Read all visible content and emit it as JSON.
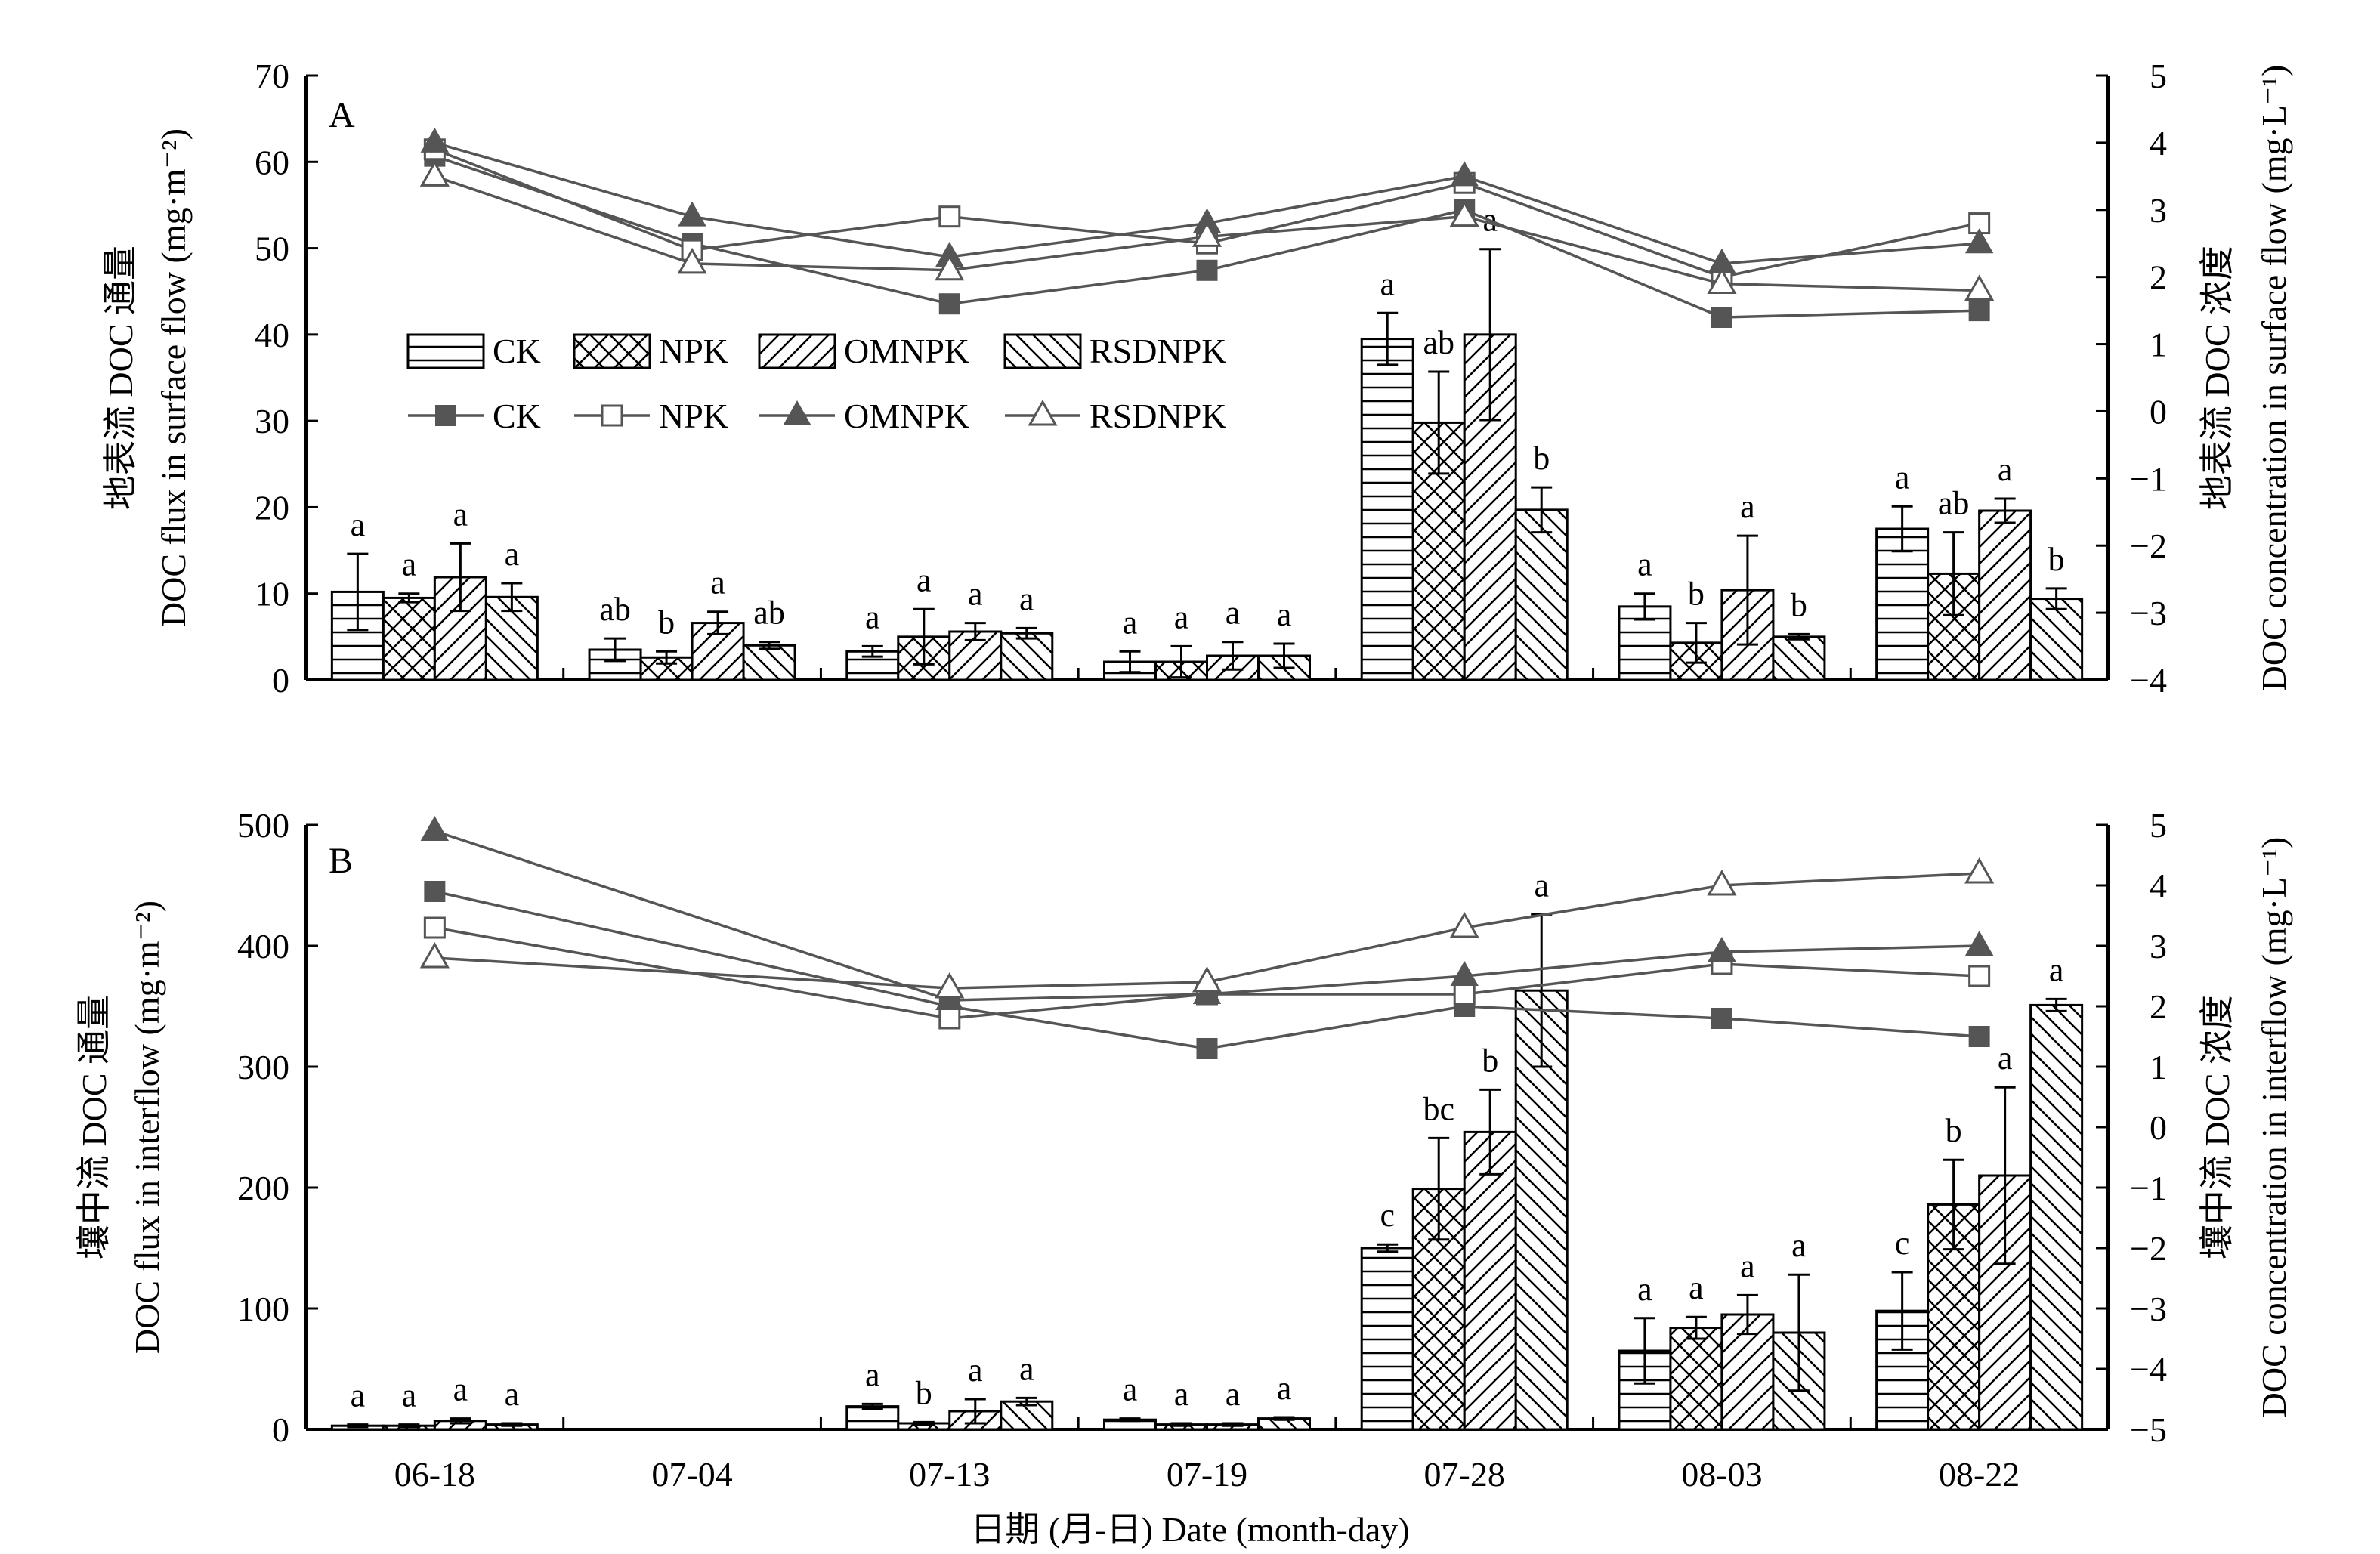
{
  "chart_data": [
    {
      "panel": "A",
      "type": "bar",
      "categories": [
        "06-18",
        "07-04",
        "07-13",
        "07-19",
        "07-28",
        "08-03",
        "08-22"
      ],
      "ylabel_left": [
        "地表流 DOC 通量",
        "DOC flux in surface flow (mg·m⁻²)"
      ],
      "ylabel_right": [
        "地表流 DOC 浓度",
        "DOC concentration in surface flow (mg·L⁻¹)"
      ],
      "ylim_left": [
        0,
        70
      ],
      "yticks_left": [
        0,
        10,
        20,
        30,
        40,
        50,
        60,
        70
      ],
      "ylim_right": [
        -4,
        5
      ],
      "yticks_right": [
        -4,
        -3,
        -2,
        -1,
        0,
        1,
        2,
        3,
        4,
        5
      ],
      "bar_series": [
        {
          "name": "CK",
          "pattern": "horizontal",
          "values": [
            10.2,
            3.5,
            3.3,
            2.1,
            39.5,
            8.5,
            17.5
          ],
          "errors": [
            4.4,
            1.3,
            0.6,
            1.2,
            3.0,
            1.5,
            2.6
          ],
          "labels": [
            "a",
            "ab",
            "a",
            "a",
            "a",
            "a",
            "a"
          ]
        },
        {
          "name": "NPK",
          "pattern": "cross",
          "values": [
            9.5,
            2.6,
            5.0,
            2.1,
            29.8,
            4.3,
            12.3
          ],
          "errors": [
            0.5,
            0.7,
            3.2,
            1.8,
            5.9,
            2.3,
            4.8
          ],
          "labels": [
            "a",
            "b",
            "a",
            "a",
            "ab",
            "b",
            "ab"
          ]
        },
        {
          "name": "OMNPK",
          "pattern": "forward",
          "values": [
            11.9,
            6.6,
            5.6,
            2.8,
            40.0,
            10.4,
            19.6
          ],
          "errors": [
            3.9,
            1.3,
            1.0,
            1.6,
            9.9,
            6.3,
            1.4
          ],
          "labels": [
            "a",
            "a",
            "a",
            "a",
            "a",
            "a",
            "a"
          ]
        },
        {
          "name": "RSDNPK",
          "pattern": "backward",
          "values": [
            9.6,
            4.0,
            5.4,
            2.8,
            19.7,
            5.0,
            9.4
          ],
          "errors": [
            1.6,
            0.4,
            0.6,
            1.4,
            2.6,
            0.3,
            1.2
          ],
          "labels": [
            "a",
            "ab",
            "a",
            "a",
            "b",
            "b",
            "b"
          ]
        }
      ],
      "line_series": [
        {
          "name": "CK",
          "marker": "filled-square",
          "values": [
            3.8,
            2.5,
            1.6,
            2.1,
            3.0,
            1.4,
            1.5
          ]
        },
        {
          "name": "NPK",
          "marker": "open-square",
          "values": [
            3.9,
            2.4,
            2.9,
            2.5,
            3.4,
            2.0,
            2.8
          ]
        },
        {
          "name": "OMNPK",
          "marker": "filled-triangle",
          "values": [
            4.0,
            2.9,
            2.3,
            2.8,
            3.5,
            2.2,
            2.5
          ]
        },
        {
          "name": "RSDNPK",
          "marker": "open-triangle",
          "values": [
            3.5,
            2.2,
            2.1,
            2.6,
            2.9,
            1.9,
            1.8
          ]
        }
      ]
    },
    {
      "panel": "B",
      "type": "bar",
      "categories": [
        "06-18",
        "07-04",
        "07-13",
        "07-19",
        "07-28",
        "08-03",
        "08-22"
      ],
      "ylabel_left": [
        "壤中流 DOC 通量",
        "DOC flux in interflow (mg·m⁻²)"
      ],
      "ylabel_right": [
        "壤中流 DOC 浓度",
        "DOC concentration in interflow (mg·L⁻¹)"
      ],
      "ylim_left": [
        0,
        500
      ],
      "yticks_left": [
        0,
        100,
        200,
        300,
        400,
        500
      ],
      "ylim_right": [
        -5,
        5
      ],
      "yticks_right": [
        -5,
        -4,
        -3,
        -2,
        -1,
        0,
        1,
        2,
        3,
        4,
        5
      ],
      "bar_series": [
        {
          "name": "CK",
          "pattern": "horizontal",
          "values": [
            3,
            null,
            19,
            8,
            150,
            65,
            98
          ],
          "errors": [
            1,
            null,
            2,
            1,
            3,
            27,
            32
          ],
          "labels": [
            "a",
            "",
            "a",
            "a",
            "c",
            "a",
            "c"
          ]
        },
        {
          "name": "NPK",
          "pattern": "cross",
          "values": [
            3,
            null,
            5,
            4,
            199,
            84,
            186
          ],
          "errors": [
            1,
            null,
            1,
            1,
            42,
            9,
            37
          ],
          "labels": [
            "a",
            "",
            "b",
            "a",
            "bc",
            "a",
            "b"
          ]
        },
        {
          "name": "OMNPK",
          "pattern": "forward",
          "values": [
            7,
            null,
            15,
            4,
            246,
            95,
            210
          ],
          "errors": [
            2,
            null,
            10,
            1,
            35,
            16,
            73
          ],
          "labels": [
            "a",
            "",
            "a",
            "a",
            "b",
            "a",
            "a"
          ]
        },
        {
          "name": "RSDNPK",
          "pattern": "backward",
          "values": [
            4,
            null,
            23,
            9,
            363,
            80,
            351
          ],
          "errors": [
            1,
            null,
            3,
            1,
            63,
            48,
            5
          ],
          "labels": [
            "a",
            "",
            "a",
            "a",
            "a",
            "a",
            "a"
          ]
        }
      ],
      "line_series": [
        {
          "name": "CK",
          "marker": "filled-square",
          "values": [
            3.9,
            null,
            2.0,
            1.3,
            2.0,
            1.8,
            1.5
          ]
        },
        {
          "name": "NPK",
          "marker": "open-square",
          "values": [
            3.3,
            null,
            1.8,
            2.2,
            2.2,
            2.7,
            2.5
          ]
        },
        {
          "name": "OMNPK",
          "marker": "filled-triangle",
          "values": [
            4.9,
            null,
            2.1,
            2.2,
            2.5,
            2.9,
            3.0
          ]
        },
        {
          "name": "RSDNPK",
          "marker": "open-triangle",
          "values": [
            2.8,
            null,
            2.3,
            2.4,
            3.3,
            4.0,
            4.2
          ]
        }
      ]
    }
  ],
  "xlabel": "日期 (月-日) Date (month-day)",
  "legend": {
    "bars": [
      "CK",
      "NPK",
      "OMNPK",
      "RSDNPK"
    ],
    "lines": [
      "CK",
      "NPK",
      "OMNPK",
      "RSDNPK"
    ]
  },
  "colors": {
    "axis": "#000000",
    "line": "#555555",
    "marker_fill": "#555555"
  }
}
